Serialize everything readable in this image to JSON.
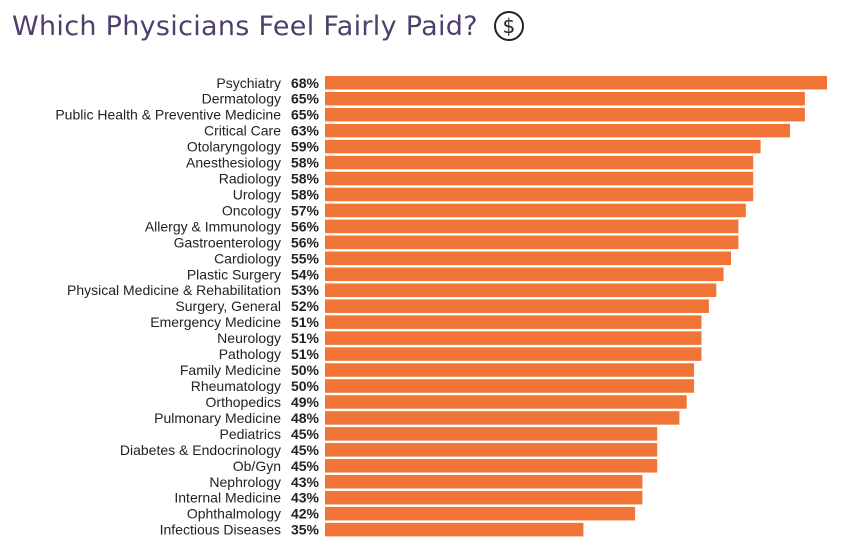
{
  "header": {
    "title": "Which Physicians Feel Fairly Paid?",
    "icon": "dollar-circle-icon"
  },
  "chart_data": {
    "type": "bar",
    "orientation": "horizontal",
    "title": "Which Physicians Feel Fairly Paid?",
    "xlabel": "",
    "ylabel": "",
    "xlim": [
      0,
      68
    ],
    "bar_color": "#f07436",
    "unit": "%",
    "categories": [
      "Psychiatry",
      "Dermatology",
      "Public Health & Preventive Medicine",
      "Critical Care",
      "Otolaryngology",
      "Anesthesiology",
      "Radiology",
      "Urology",
      "Oncology",
      "Allergy & Immunology",
      "Gastroenterology",
      "Cardiology",
      "Plastic Surgery",
      "Physical Medicine & Rehabilitation",
      "Surgery, General",
      "Emergency Medicine",
      "Neurology",
      "Pathology",
      "Family Medicine",
      "Rheumatology",
      "Orthopedics",
      "Pulmonary Medicine",
      "Pediatrics",
      "Diabetes & Endocrinology",
      "Ob/Gyn",
      "Nephrology",
      "Internal Medicine",
      "Ophthalmology",
      "Infectious Diseases"
    ],
    "values": [
      68,
      65,
      65,
      63,
      59,
      58,
      58,
      58,
      57,
      56,
      56,
      55,
      54,
      53,
      52,
      51,
      51,
      51,
      50,
      50,
      49,
      48,
      45,
      45,
      45,
      43,
      43,
      42,
      35
    ],
    "value_labels": [
      "68%",
      "65%",
      "65%",
      "63%",
      "59%",
      "58%",
      "58%",
      "58%",
      "57%",
      "56%",
      "56%",
      "55%",
      "54%",
      "53%",
      "52%",
      "51%",
      "51%",
      "51%",
      "50%",
      "50%",
      "49%",
      "48%",
      "45%",
      "45%",
      "45%",
      "43%",
      "43%",
      "42%",
      "35%"
    ]
  }
}
